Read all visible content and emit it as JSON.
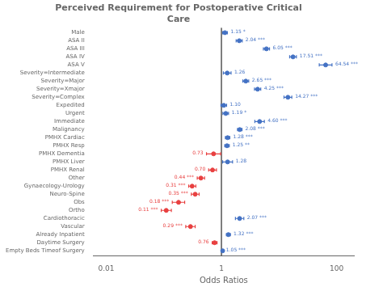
{
  "chart_data": {
    "type": "forest",
    "title": "Perceived Requirement for Postoperative Critical\nCare",
    "xlabel": "Odds Ratios",
    "categories": [
      "Male",
      "ASA II",
      "ASA III",
      "ASA IV",
      "ASA V",
      "Severity=Intermediate",
      "Severity=Major",
      "Severity=Xmajor",
      "Severity=Complex",
      "Expedited",
      "Urgent",
      "Immediate",
      "Malignancy",
      "PMHX Cardiac",
      "PMHX Resp",
      "PMHX Dementia",
      "PMHX Liver",
      "PMHX Renal",
      "Other",
      "Gynaecology-Urology",
      "Neuro-Spine",
      "Obs",
      "Ortho",
      "Cardiothoracic",
      "Vascular",
      "Already Inpatient",
      "Daytime Surgery",
      "Empty Beds Timeof Surgery"
    ],
    "values": [
      1.15,
      2.04,
      6.05,
      17.51,
      64.54,
      1.26,
      2.65,
      4.25,
      14.27,
      1.1,
      1.19,
      4.6,
      2.08,
      1.28,
      1.25,
      0.73,
      1.28,
      0.7,
      0.44,
      0.31,
      0.35,
      0.18,
      0.11,
      2.07,
      0.29,
      1.32,
      0.76,
      1.05
    ],
    "lo": [
      1.05,
      1.8,
      5.35,
      15.3,
      50.0,
      1.08,
      2.35,
      3.75,
      12.2,
      0.98,
      1.06,
      3.8,
      1.9,
      1.17,
      1.14,
      0.55,
      1.05,
      0.6,
      0.38,
      0.27,
      0.3,
      0.14,
      0.09,
      1.75,
      0.24,
      1.22,
      0.69,
      1.04
    ],
    "hi": [
      1.27,
      2.3,
      6.84,
      20.06,
      83.27,
      1.47,
      2.98,
      4.82,
      16.69,
      1.23,
      1.33,
      5.57,
      2.28,
      1.4,
      1.37,
      0.97,
      1.56,
      0.82,
      0.51,
      0.36,
      0.41,
      0.23,
      0.135,
      2.45,
      0.35,
      1.43,
      0.84,
      1.06
    ],
    "value_labels": [
      "1.15 *",
      "2.04 ***",
      "6.05 ***",
      "17.51 ***",
      "64.54 ***",
      "1.26",
      "2.65 ***",
      "4.25 ***",
      "14.27 ***",
      "1.10",
      "1.19 *",
      "4.60 ***",
      "2.08 ***",
      "1.28 ***",
      "1.25 **",
      "0.73",
      "1.28",
      "0.70",
      "0.44 ***",
      "0.31 ***",
      "0.35 ***",
      "0.18 ***",
      "0.11 ***",
      "2.07 ***",
      "0.29 ***",
      "1.32 ***",
      "0.76",
      "1.05 ***"
    ],
    "colors": [
      "#4472C4",
      "#4472C4",
      "#4472C4",
      "#4472C4",
      "#4472C4",
      "#4472C4",
      "#4472C4",
      "#4472C4",
      "#4472C4",
      "#4472C4",
      "#4472C4",
      "#4472C4",
      "#4472C4",
      "#4472C4",
      "#4472C4",
      "#E84040",
      "#4472C4",
      "#E84040",
      "#E84040",
      "#E84040",
      "#E84040",
      "#E84040",
      "#E84040",
      "#4472C4",
      "#E84040",
      "#4472C4",
      "#E84040",
      "#4472C4"
    ],
    "log": "x",
    "xlim": [
      0.006,
      200
    ],
    "xticks": [
      0.01,
      1,
      100
    ],
    "reference_line": 1,
    "data_labels": true,
    "grid": false
  }
}
